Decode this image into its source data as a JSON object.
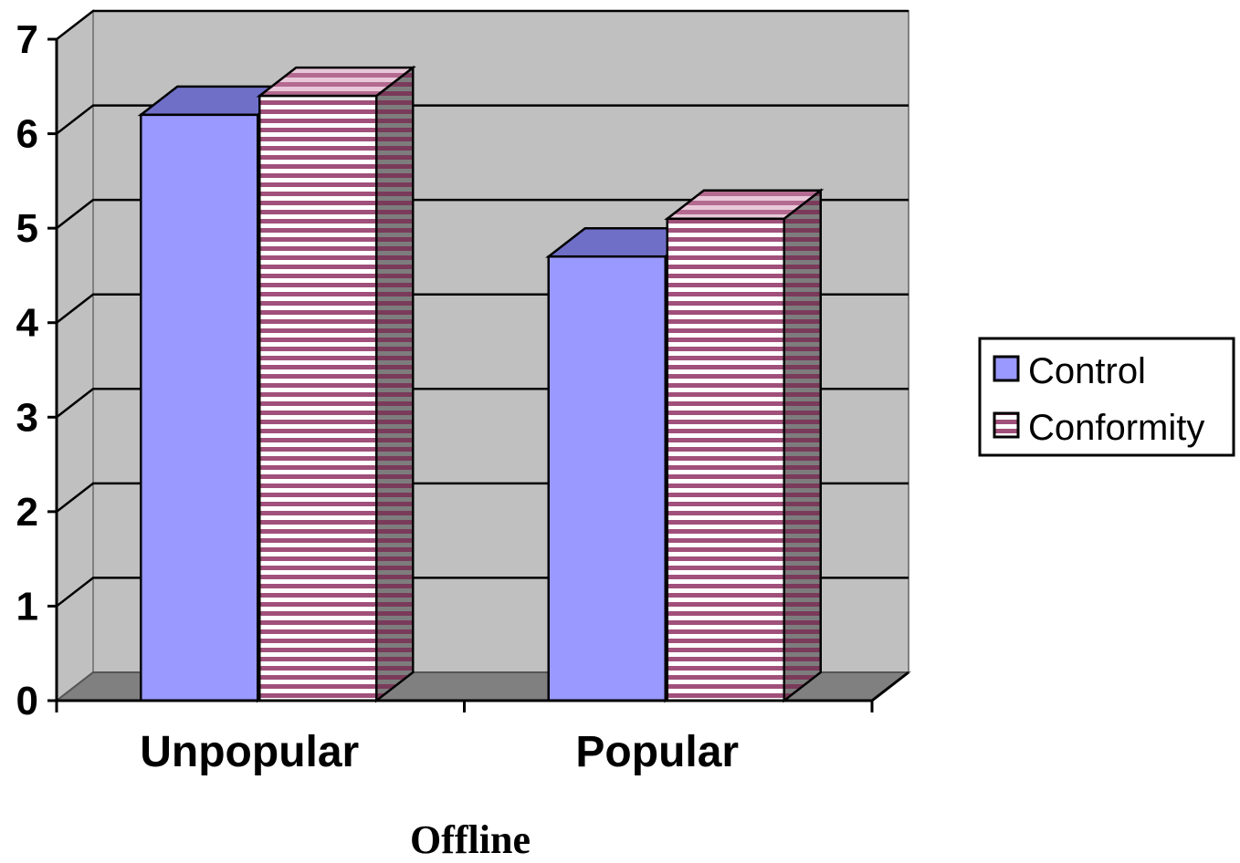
{
  "chart_data": {
    "type": "bar",
    "style": "3d-clustered-column",
    "categories": [
      "Unpopular",
      "Popular"
    ],
    "series": [
      {
        "name": "Control",
        "values": [
          6.2,
          4.7
        ],
        "color": "#9999ff",
        "top_color": "#6f6fc8",
        "pattern": "solid"
      },
      {
        "name": "Conformity",
        "values": [
          6.4,
          5.1
        ],
        "color": "#ffffff",
        "stripe_color": "#a0507a",
        "side_color": "#7d7d7d",
        "pattern": "horizontal-stripes"
      }
    ],
    "xlabel": "Offline",
    "ylabel": "",
    "ylim": [
      0,
      7
    ],
    "yticks": [
      "0",
      "1",
      "2",
      "3",
      "4",
      "5",
      "6",
      "7"
    ],
    "grid": true,
    "legend": "right",
    "colors": {
      "wall": "#c0c0c0",
      "floor": "#808080"
    }
  }
}
